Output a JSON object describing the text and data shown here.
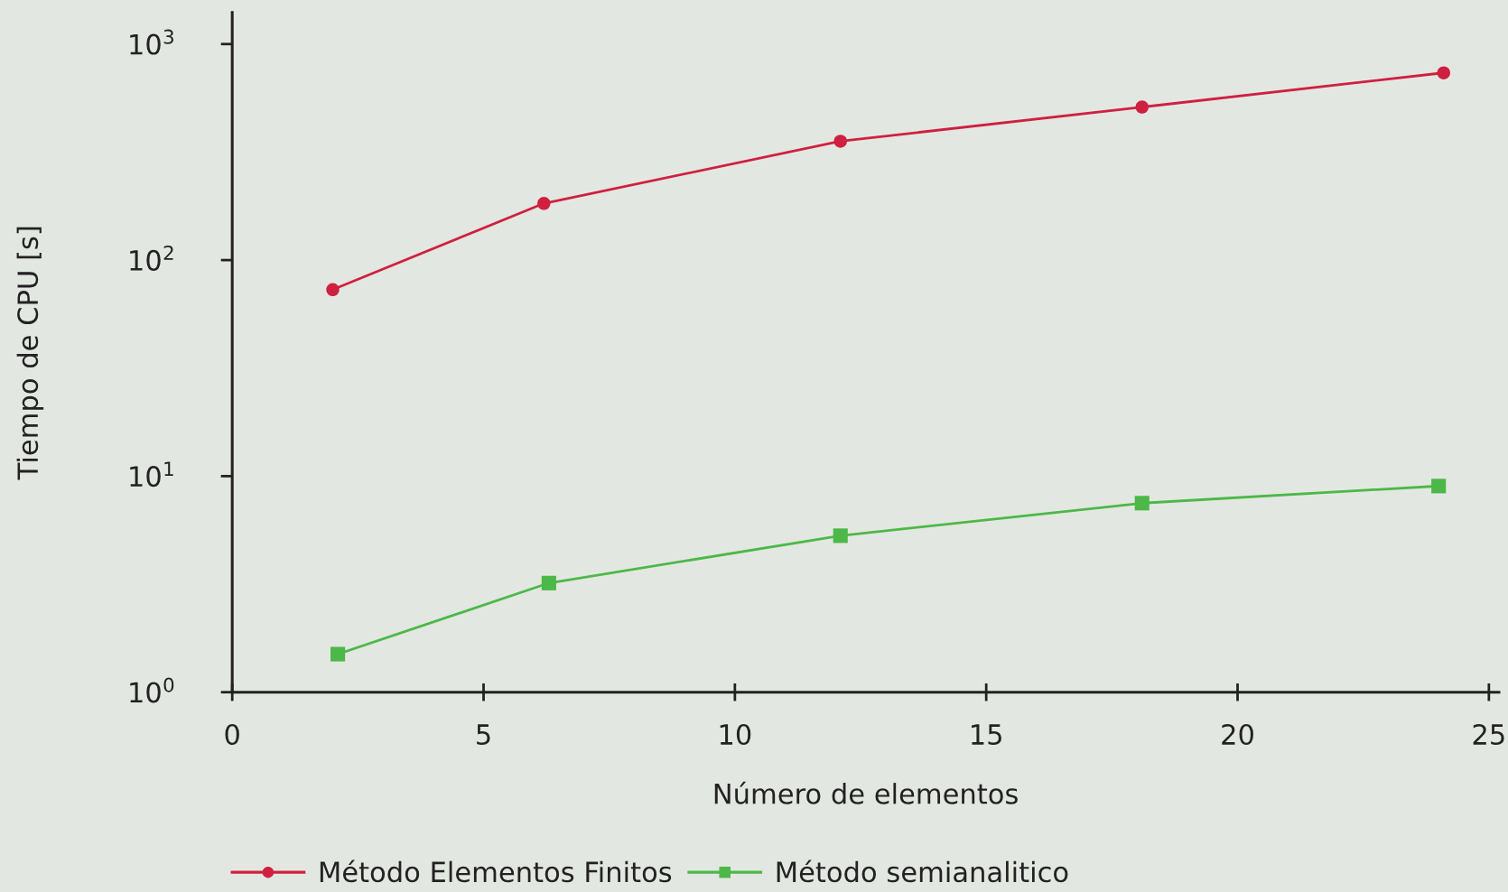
{
  "chart_data": {
    "type": "line",
    "xlabel": "Número de elementos",
    "ylabel": "Tiempo de CPU [s]",
    "xlim": [
      0,
      25.2
    ],
    "xticks": [
      0,
      5,
      10,
      15,
      20,
      25
    ],
    "ylim": [
      1,
      1400
    ],
    "log": "y",
    "yticks": [
      {
        "value": 1,
        "label": "10$^{0}$"
      },
      {
        "value": 10,
        "label": "10$^{1}$"
      },
      {
        "value": 100,
        "label": "10$^{2}$"
      },
      {
        "value": 1000,
        "label": "10$^{3}$"
      }
    ],
    "grid": false,
    "legend": "bottom",
    "line_style": "solid",
    "series": [
      {
        "name": "Método Elementos Finitos",
        "color": "#cf2040",
        "marker": "circle",
        "x": [
          2.0,
          6.2,
          12.1,
          18.1,
          24.1
        ],
        "values": [
          73,
          183,
          355,
          511,
          736
        ]
      },
      {
        "name": "Método semianalitico",
        "color": "#4cb848",
        "marker": "square",
        "x": [
          2.1,
          6.3,
          12.1,
          18.1,
          24.0
        ],
        "values": [
          1.5,
          3.2,
          5.3,
          7.5,
          9.0
        ]
      }
    ]
  }
}
